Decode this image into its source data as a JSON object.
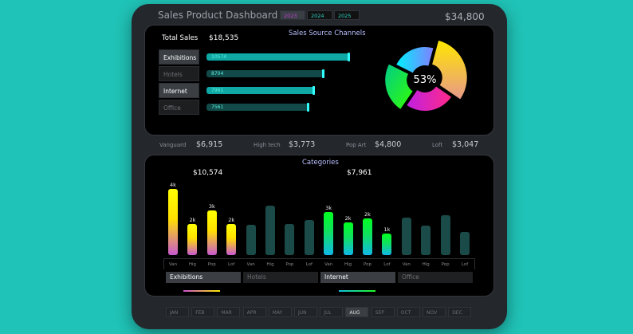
{
  "header": {
    "title": "Sales Product Dashboard",
    "years": [
      "2023",
      "2024",
      "2025"
    ],
    "selected_year": "2023",
    "grand_total": "$34,800"
  },
  "channels_card": {
    "title": "Sales Source Channels",
    "total_label": "Total Sales",
    "total_value": "$18,535",
    "donut_label": "53%",
    "channels": [
      {
        "label": "Exhibitions",
        "value": 10574,
        "selected": true
      },
      {
        "label": "Hotels",
        "value": 8704,
        "selected": false
      },
      {
        "label": "Internet",
        "value": 7961,
        "selected": true
      },
      {
        "label": "Office",
        "value": 7561,
        "selected": false
      }
    ]
  },
  "stats": [
    {
      "label": "Vanguard",
      "value": "$6,915"
    },
    {
      "label": "High tech",
      "value": "$3,773"
    },
    {
      "label": "Pop Art",
      "value": "$4,800"
    },
    {
      "label": "Loft",
      "value": "$3,047"
    }
  ],
  "categories_card": {
    "title": "Categories",
    "selected_totals": [
      "$10,574",
      "$7,961"
    ]
  },
  "chart_data": {
    "type": "bar",
    "title": "Categories",
    "groups": [
      "Exhibitions",
      "Hotels",
      "Internet",
      "Office"
    ],
    "categories": [
      "Van",
      "Hig",
      "Pop",
      "Lof"
    ],
    "series": [
      {
        "name": "Exhibitions",
        "values": [
          4000,
          1900,
          2700,
          1900
        ],
        "labels": [
          "4k",
          "2k",
          "3k",
          "2k"
        ],
        "highlighted": true
      },
      {
        "name": "Hotels",
        "values": [
          1850,
          3000,
          1900,
          2100
        ],
        "highlighted": false
      },
      {
        "name": "Internet",
        "values": [
          2600,
          2000,
          2200,
          1300
        ],
        "labels": [
          "3k",
          "2k",
          "2k",
          "1k"
        ],
        "highlighted": true
      },
      {
        "name": "Office",
        "values": [
          2250,
          1800,
          2400,
          1400
        ],
        "highlighted": false
      }
    ]
  },
  "months": [
    "JAN",
    "FEB",
    "MAR",
    "APR",
    "MAY",
    "JUN",
    "JUL",
    "AUG",
    "SEP",
    "OCT",
    "NOV",
    "DEC"
  ],
  "selected_month": "AUG",
  "colors": {
    "background": "#20c3b7",
    "panel": "#24272c",
    "bar_dim": "#1b4b48",
    "accent": "#2fd4c6"
  }
}
